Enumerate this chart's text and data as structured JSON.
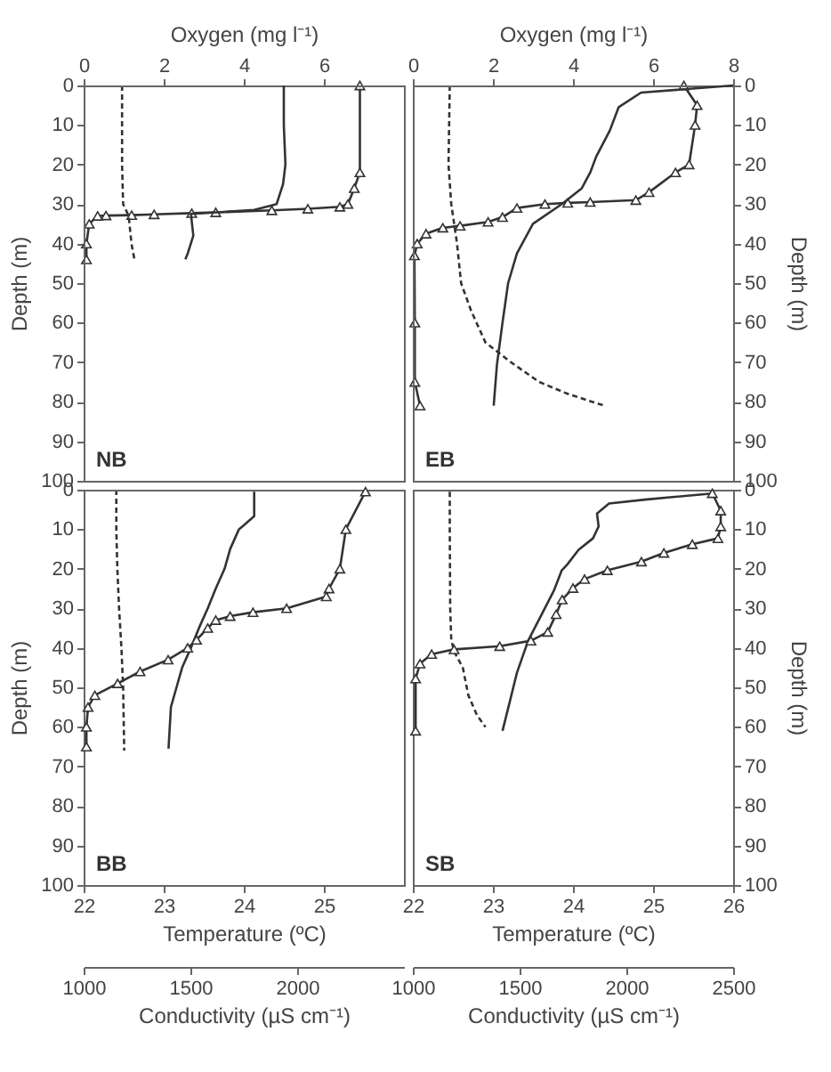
{
  "chart_data": [
    {
      "type": "line",
      "xlabel": "Oxygen (mg l⁻¹)",
      "ylabel": "Depth (m)",
      "xlim": [
        0,
        8
      ],
      "xticks": [
        0,
        2,
        4,
        6
      ],
      "ylim": [
        100,
        0
      ],
      "yticks": [
        0,
        10,
        20,
        30,
        40,
        50,
        60,
        70,
        80,
        90,
        100
      ],
      "annotations": [
        "NB"
      ],
      "series": [
        {
          "color": "#333333",
          "marker": "triangle",
          "x": [
            6.9,
            6.9,
            6.76,
            6.6,
            6.4,
            5.6,
            4.7,
            3.3,
            2.7,
            1.76,
            1.2,
            0.56,
            0.35,
            0.14,
            0.07,
            0.07
          ],
          "values": [
            0,
            22,
            26,
            30,
            30.7,
            31.2,
            31.6,
            32.1,
            32.3,
            32.6,
            32.8,
            32.9,
            33,
            35,
            40,
            44
          ]
        }
      ]
    },
    {
      "type": "line",
      "xlabel": "Oxygen (mg l⁻¹)",
      "ylabel": "Depth (m)",
      "xlim": [
        0,
        8
      ],
      "xticks": [
        0,
        2,
        4,
        6,
        8
      ],
      "ylim": [
        100,
        0
      ],
      "yticks": [
        0,
        10,
        20,
        30,
        40,
        50,
        60,
        70,
        80,
        90,
        100
      ],
      "annotations": [
        "EB"
      ],
      "series": [
        {
          "color": "#333333",
          "marker": "triangle",
          "x": [
            6.77,
            7.1,
            7.05,
            6.9,
            6.56,
            5.9,
            5.57,
            4.43,
            3.87,
            3.3,
            2.6,
            2.24,
            1.88,
            1.18,
            0.75,
            0.33,
            0.11,
            0.04,
            0.05,
            0.05,
            0.18
          ],
          "values": [
            0,
            5,
            10,
            20,
            22,
            27,
            29,
            29.5,
            29.7,
            30,
            31,
            33.3,
            34.5,
            35.5,
            36,
            37.5,
            40,
            43,
            60,
            75,
            81
          ]
        }
      ]
    },
    {
      "type": "line",
      "xlabel": "Temperature (ºC)",
      "ylabel": "Depth (m)",
      "xlim": [
        22,
        26
      ],
      "xticks": [
        22,
        23,
        24,
        25
      ],
      "ylim": [
        100,
        0
      ],
      "yticks": [
        0,
        10,
        20,
        30,
        40,
        50,
        60,
        70,
        80,
        90,
        100
      ],
      "annotations": [
        "BB"
      ],
      "series": [
        {
          "color": "#333333",
          "x": [
            24.13,
            24.13,
            24,
            23.94,
            23.83,
            23.76,
            23.65,
            23.55,
            23.44,
            23.34,
            23.23,
            23.16,
            23.09,
            23.06
          ],
          "values": [
            0.5,
            6.7,
            9,
            10,
            15,
            20,
            25,
            30,
            35,
            40,
            45,
            50,
            55,
            65.5
          ]
        }
      ]
    },
    {
      "type": "line",
      "xlabel": "Temperature (ºC)",
      "ylabel": "Depth (m)",
      "xlim": [
        22,
        26
      ],
      "xticks": [
        22,
        23,
        24,
        25,
        26
      ],
      "ylim": [
        100,
        0
      ],
      "yticks": [
        0,
        10,
        20,
        30,
        40,
        50,
        60,
        70,
        80,
        90,
        100
      ],
      "annotations": [
        "SB"
      ],
      "series": [
        {
          "color": "#333333",
          "x": [
            25.77,
            24.9,
            24.45,
            24.3,
            24.32,
            24.25,
            24.07,
            23.93,
            23.86,
            23.76,
            23.61,
            23.44,
            23.3,
            23.21,
            23.12
          ],
          "values": [
            0.9,
            2.5,
            3.5,
            6,
            9.3,
            12.3,
            15.2,
            18.9,
            20.4,
            25.6,
            31.5,
            38.2,
            46.3,
            53.7,
            61
          ]
        }
      ]
    },
    {
      "type": "line",
      "xlim": [
        1000,
        2500
      ],
      "ylim": [
        100,
        0
      ],
      "tick_labels": false,
      "series": [
        {
          "color": "#333333",
          "line_style": "dashed",
          "x": [
            1180,
            1180,
            1185,
            1211,
            1224,
            1238
          ],
          "values": [
            0,
            20,
            30,
            33,
            40,
            44
          ]
        }
      ]
    },
    {
      "type": "line",
      "xlim": [
        1000,
        2500
      ],
      "ylim": [
        100,
        0
      ],
      "tick_labels": false,
      "series": [
        {
          "color": "#333333",
          "line_style": "dashed",
          "x": [
            1173,
            1167,
            1180,
            1207,
            1226,
            1273,
            1340,
            1459,
            1592,
            1725,
            1897
          ],
          "values": [
            0,
            20,
            30,
            40,
            50,
            57,
            65,
            70,
            75,
            78,
            81
          ]
        }
      ]
    },
    {
      "type": "line",
      "xlabel": "Conductivity (µS cm⁻¹)",
      "xlim": [
        1000,
        2500
      ],
      "xticks": [
        1000,
        1500,
        2000
      ],
      "ylim": [
        100,
        0
      ],
      "tick_labels": "x",
      "series": [
        {
          "color": "#333333",
          "line_style": "dashed",
          "x": [
            1153,
            1153,
            1158,
            1166,
            1177,
            1185,
            1190
          ],
          "values": [
            0,
            10,
            20,
            30,
            40,
            50,
            66
          ]
        }
      ]
    },
    {
      "type": "line",
      "xlabel": "Conductivity (µS cm⁻¹)",
      "xlim": [
        1000,
        2500
      ],
      "xticks": [
        1000,
        1500,
        2000,
        2500
      ],
      "ylim": [
        100,
        0
      ],
      "tick_labels": "x",
      "series": [
        {
          "color": "#333333",
          "line_style": "dashed",
          "x": [
            1173,
            1173,
            1175,
            1180,
            1194,
            1234,
            1260,
            1300,
            1340
          ],
          "values": [
            0.5,
            10,
            30,
            38,
            41,
            45,
            52,
            57,
            60
          ]
        }
      ]
    },
    {
      "type": "line",
      "xlim": [
        22,
        26
      ],
      "ylim": [
        100,
        0
      ],
      "tick_labels": false,
      "series": [
        {
          "color": "#333333",
          "x": [
            24.5,
            24.5,
            24.52,
            24.49,
            24.41,
            24.13,
            23.34,
            23.37,
            23.3,
            23.27
          ],
          "values": [
            0,
            10,
            20,
            25,
            30,
            31.5,
            32.5,
            38,
            42.5,
            44
          ]
        }
      ]
    },
    {
      "type": "line",
      "xlim": [
        22,
        26
      ],
      "ylim": [
        100,
        0
      ],
      "tick_labels": false,
      "series": [
        {
          "color": "#333333",
          "x": [
            26,
            24.85,
            24.57,
            24.46,
            24.29,
            24.22,
            24.11,
            23.86,
            23.5,
            23.3,
            23.19,
            23.12,
            23.05,
            23.01
          ],
          "values": [
            0,
            1.8,
            5.5,
            11.4,
            18,
            21.8,
            26,
            30,
            35,
            42.5,
            50,
            60,
            70.7,
            81
          ]
        }
      ]
    },
    {
      "type": "line",
      "xlim": [
        0,
        8
      ],
      "ylim": [
        100,
        0
      ],
      "tick_labels": false,
      "series": [
        {
          "color": "#333333",
          "marker": "triangle",
          "x": [
            7.04,
            6.55,
            6.4,
            6.13,
            6.06,
            5.07,
            4.23,
            3.66,
            3.3,
            3.1,
            2.82,
            2.6,
            2.11,
            1.41,
            0.85,
            0.28,
            0.11,
            0.07,
            0.07
          ],
          "values": [
            0.5,
            10,
            20,
            25,
            27,
            30,
            31,
            32,
            33,
            35,
            38,
            40,
            43,
            46,
            49,
            52,
            55,
            60,
            65
          ]
        }
      ]
    },
    {
      "type": "line",
      "xlim": [
        0,
        8
      ],
      "ylim": [
        100,
        0
      ],
      "tick_labels": false,
      "series": [
        {
          "color": "#333333",
          "marker": "triangle",
          "x": [
            7.48,
            7.69,
            7.69,
            7.62,
            6.98,
            6.27,
            5.71,
            4.86,
            4.29,
            4,
            3.73,
            3.58,
            3.37,
            2.95,
            2.17,
            1.03,
            0.47,
            0.18,
            0.07,
            0.07
          ],
          "values": [
            0.9,
            5.3,
            9.3,
            12.3,
            13.8,
            16,
            18.2,
            20.4,
            22.6,
            24.9,
            27.8,
            31.5,
            36,
            38.2,
            39.6,
            40.4,
            41.6,
            44,
            47.8,
            61
          ]
        }
      ]
    }
  ]
}
